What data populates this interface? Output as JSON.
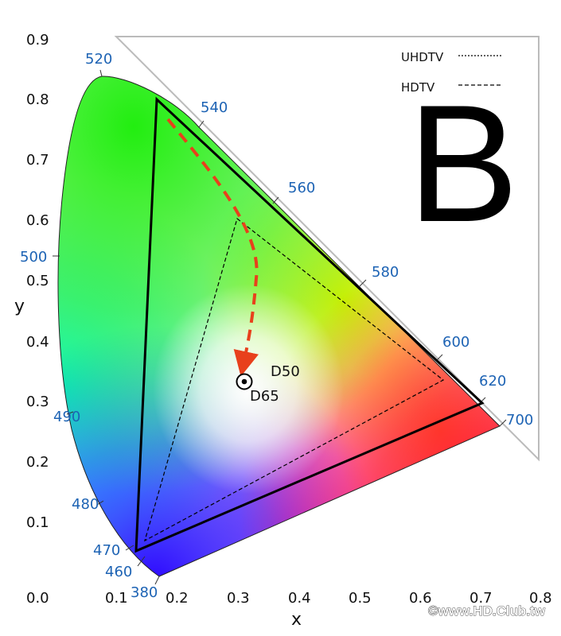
{
  "diagram": {
    "big_letter": "B",
    "axis": {
      "x_label": "x",
      "y_label": "y"
    },
    "x_ticks": [
      "0.0",
      "0.1",
      "0.2",
      "0.3",
      "0.4",
      "0.5",
      "0.6",
      "0.7",
      "0.8"
    ],
    "y_ticks": [
      "0.1",
      "0.2",
      "0.3",
      "0.4",
      "0.5",
      "0.6",
      "0.7",
      "0.8",
      "0.9"
    ],
    "wavelengths": [
      "380",
      "460",
      "470",
      "480",
      "490",
      "500",
      "520",
      "540",
      "560",
      "580",
      "600",
      "620",
      "700"
    ],
    "legend": [
      {
        "label": "UHDTV",
        "style": "dotted"
      },
      {
        "label": "HDTV",
        "style": "dashed"
      }
    ],
    "white_points": [
      "D50",
      "D65"
    ],
    "colors": {
      "arrow": "#e8401c",
      "wavelength_text": "#1d63b4"
    },
    "credit": "©www.HD.Club.tw"
  }
}
